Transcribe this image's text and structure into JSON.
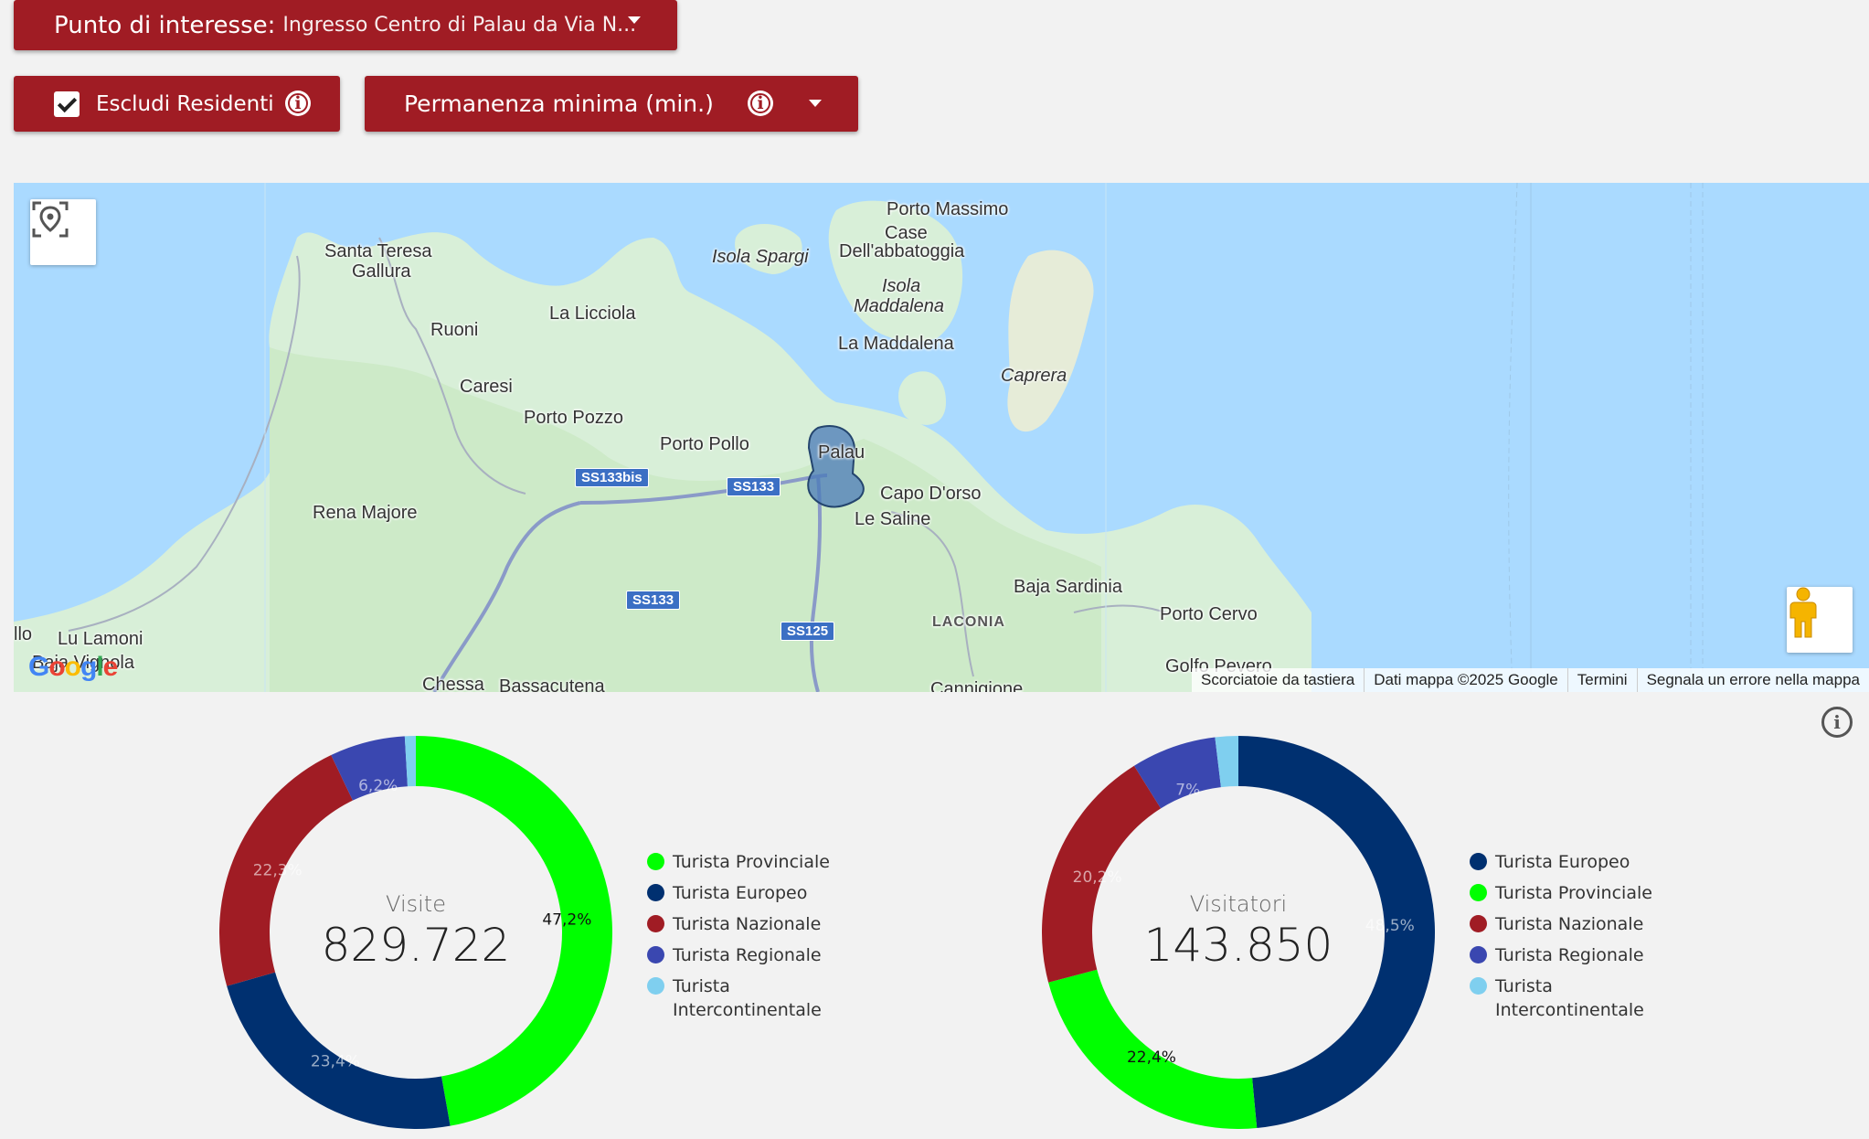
{
  "filters": {
    "poi_label": "Punto di interesse:",
    "poi_value": "Ingresso Centro di Palau da Via N...",
    "exclude_residents_label": "Escludi Residenti",
    "exclude_residents_checked": true,
    "min_stay_label": "Permanenza minima (min.)"
  },
  "map": {
    "labels": [
      "Porto Massimo",
      "Case",
      "Dell'abbatoggia",
      "Santa Teresa",
      "Gallura",
      "Isola Spargi",
      "Isola",
      "Maddalena",
      "La Licciola",
      "Ruoni",
      "La Maddalena",
      "Caprera",
      "Caresi",
      "Porto Pozzo",
      "Porto Pollo",
      "Palau",
      "Capo D'orso",
      "Le Saline",
      "Rena Majore",
      "Baja Sardinia",
      "Porto Cervo",
      "LACONIA",
      "Lu Lamoni",
      "Baja Vignola",
      "llo",
      "Golfo Pevero",
      "Chessa",
      "Bassacutena",
      "Cannigione"
    ],
    "road_shields": [
      "SS133bis",
      "SS133",
      "SS133",
      "SS125"
    ],
    "google_logo": "Google",
    "attribution": [
      "Scorciatoie da tastiera",
      "Dati mappa ©2025 Google",
      "Termini",
      "Segnala un errore nella mappa"
    ]
  },
  "chart_data": [
    {
      "type": "pie",
      "title": "Visite",
      "total_label": "829.722",
      "categories": [
        "Turista Provinciale",
        "Turista Europeo",
        "Turista Nazionale",
        "Turista Regionale",
        "Turista Intercontinentale"
      ],
      "values": [
        47.2,
        23.4,
        22.3,
        6.2,
        0.9
      ],
      "slice_labels": [
        "47,2%",
        "23,4%",
        "22,3%",
        "6,2%",
        ""
      ],
      "colors": [
        "#00ff00",
        "#003070",
        "#a01c24",
        "#3a47b0",
        "#7fcfef"
      ],
      "legend": "right"
    },
    {
      "type": "pie",
      "title": "Visitatori",
      "total_label": "143.850",
      "categories": [
        "Turista Europeo",
        "Turista Provinciale",
        "Turista Nazionale",
        "Turista Regionale",
        "Turista Intercontinentale"
      ],
      "values": [
        48.5,
        22.4,
        20.2,
        7.0,
        1.9
      ],
      "slice_labels": [
        "48,5%",
        "22,4%",
        "20,2%",
        "7%",
        ""
      ],
      "colors": [
        "#003070",
        "#00ff00",
        "#a01c24",
        "#3a47b0",
        "#7fcfef"
      ],
      "legend": "right"
    }
  ]
}
